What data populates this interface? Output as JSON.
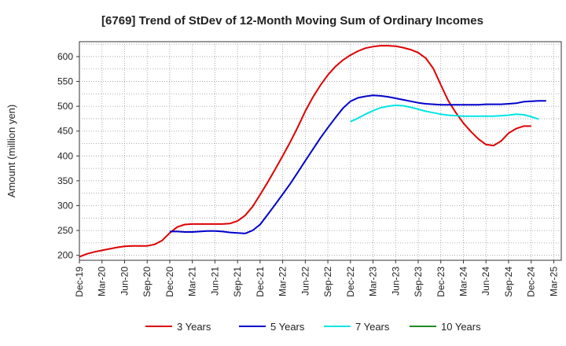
{
  "chart_data": {
    "type": "line",
    "title": "[6769]  Trend of StDev of 12-Month Moving Sum of Ordinary Incomes",
    "xlabel": "",
    "ylabel": "Amount (million yen)",
    "ylim": [
      190,
      630
    ],
    "yticks": [
      200,
      250,
      300,
      350,
      400,
      450,
      500,
      550,
      600
    ],
    "x_ticks": [
      "Dec-19",
      "Mar-20",
      "Jun-20",
      "Sep-20",
      "Dec-20",
      "Mar-21",
      "Jun-21",
      "Sep-21",
      "Dec-21",
      "Mar-22",
      "Jun-22",
      "Sep-22",
      "Dec-22",
      "Mar-23",
      "Jun-23",
      "Sep-23",
      "Dec-23",
      "Mar-24",
      "Jun-24",
      "Sep-24",
      "Dec-24",
      "Mar-25"
    ],
    "x_months": [
      "Dec-19",
      "Jan-20",
      "Feb-20",
      "Mar-20",
      "Apr-20",
      "May-20",
      "Jun-20",
      "Jul-20",
      "Aug-20",
      "Sep-20",
      "Oct-20",
      "Nov-20",
      "Dec-20",
      "Jan-21",
      "Feb-21",
      "Mar-21",
      "Apr-21",
      "May-21",
      "Jun-21",
      "Jul-21",
      "Aug-21",
      "Sep-21",
      "Oct-21",
      "Nov-21",
      "Dec-21",
      "Jan-22",
      "Feb-22",
      "Mar-22",
      "Apr-22",
      "May-22",
      "Jun-22",
      "Jul-22",
      "Aug-22",
      "Sep-22",
      "Oct-22",
      "Nov-22",
      "Dec-22",
      "Jan-23",
      "Feb-23",
      "Mar-23",
      "Apr-23",
      "May-23",
      "Jun-23",
      "Jul-23",
      "Aug-23",
      "Sep-23",
      "Oct-23",
      "Nov-23",
      "Dec-23",
      "Jan-24",
      "Feb-24",
      "Mar-24",
      "Apr-24",
      "May-24",
      "Jun-24",
      "Jul-24",
      "Aug-24",
      "Sep-24",
      "Oct-24",
      "Nov-24",
      "Dec-24"
    ],
    "series": [
      {
        "name": "3 Years",
        "color": "#dd0000",
        "start": 0,
        "values": [
          197,
          203,
          207,
          210,
          213,
          216,
          218,
          219,
          219,
          219,
          222,
          230,
          245,
          257,
          262,
          263,
          263,
          263,
          263,
          263,
          264,
          269,
          280,
          298,
          322,
          347,
          373,
          400,
          428,
          458,
          490,
          518,
          542,
          563,
          580,
          593,
          603,
          611,
          617,
          620,
          622,
          622,
          621,
          618,
          614,
          608,
          597,
          576,
          543,
          511,
          487,
          466,
          449,
          434,
          423,
          421,
          430,
          446,
          455,
          460,
          460
        ]
      },
      {
        "name": "5 Years",
        "color": "#0000cc",
        "start": 12,
        "values": [
          248,
          248,
          247,
          247,
          248,
          249,
          249,
          248,
          246,
          245,
          244,
          250,
          262,
          282,
          302,
          323,
          344,
          367,
          390,
          413,
          436,
          457,
          477,
          496,
          510,
          517,
          520,
          522,
          521,
          519,
          516,
          513,
          510,
          507,
          505,
          504,
          503,
          503,
          503,
          503,
          503,
          503,
          504,
          504,
          504,
          505,
          506,
          509,
          510,
          511,
          511
        ]
      },
      {
        "name": "7 Years",
        "color": "#00e5e5",
        "start": 36,
        "values": [
          469,
          476,
          484,
          491,
          497,
          500,
          502,
          501,
          498,
          494,
          490,
          487,
          484,
          482,
          481,
          480,
          480,
          480,
          480,
          480,
          481,
          482,
          484,
          483,
          479,
          474
        ]
      },
      {
        "name": "10 Years",
        "color": "#228b22",
        "start": 0,
        "values": []
      }
    ],
    "legend_position": "bottom"
  }
}
